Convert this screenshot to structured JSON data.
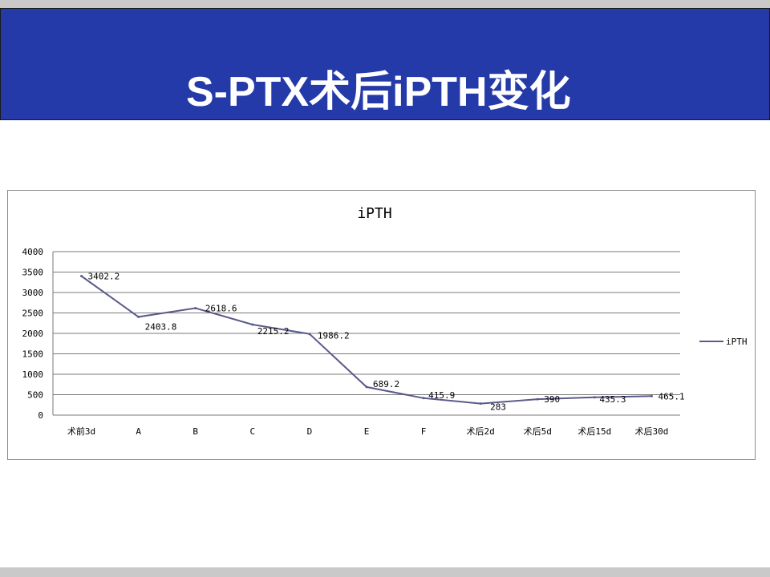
{
  "slide": {
    "title": "S-PTX术后iPTH变化",
    "colors": {
      "banner": "#243aa8",
      "series": "#5a5a8c"
    }
  },
  "chart_data": {
    "type": "line",
    "title": "iPTH",
    "categories": [
      "术前3d",
      "A",
      "B",
      "C",
      "D",
      "E",
      "F",
      "术后2d",
      "术后5d",
      "术后15d",
      "术后30d"
    ],
    "series": [
      {
        "name": "iPTH",
        "values": [
          3402.2,
          2403.8,
          2618.6,
          2215.2,
          1986.2,
          689.2,
          415.9,
          283,
          390,
          435.3,
          465.1
        ]
      }
    ],
    "data_labels": [
      "3402.2",
      "2403.8",
      "2618.6",
      "2215.2",
      "1986.2",
      "689.2",
      "415.9",
      "283",
      "390",
      "435.3",
      "465.1"
    ],
    "ylim": [
      0,
      4000
    ],
    "yticks": [
      0,
      500,
      1000,
      1500,
      2000,
      2500,
      3000,
      3500,
      4000
    ],
    "grid": true,
    "legend": "right"
  }
}
